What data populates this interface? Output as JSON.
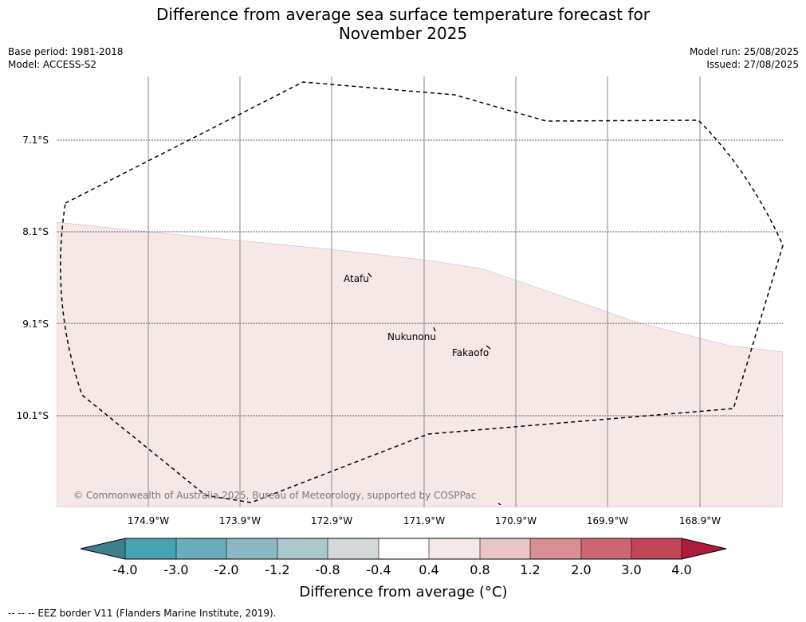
{
  "title_line1": "Difference from average sea surface temperature forecast for",
  "title_line2": "November 2025",
  "base_period": "Base period: 1981-2018",
  "model": "Model: ACCESS-S2",
  "model_run": "Model run: 25/08/2025",
  "issued": "Issued: 27/08/2025",
  "lat_labels": [
    "7.1°S",
    "8.1°S",
    "9.1°S",
    "10.1°S"
  ],
  "lon_labels": [
    "174.9°W",
    "173.9°W",
    "172.9°W",
    "171.9°W",
    "170.9°W",
    "169.9°W",
    "168.9°W"
  ],
  "places": [
    "Atafu",
    "Nukunonu",
    "Fakaofo"
  ],
  "copyright": "© Commonwealth of Australia 2025, Bureau of Meteorology, supported by COSPPac",
  "colorbar": {
    "ticks": [
      "-4.0",
      "-3.0",
      "-2.0",
      "-1.2",
      "-0.8",
      "-0.4",
      "0.4",
      "0.8",
      "1.2",
      "2.0",
      "3.0",
      "4.0"
    ],
    "colors": [
      "#3d7f8d",
      "#45a3b3",
      "#6aaebd",
      "#8bb9c3",
      "#a9c8cc",
      "#d2d9d8",
      "#ffffff",
      "#f6e8e7",
      "#e9c6c3",
      "#d78e95",
      "#cc6673",
      "#c04556",
      "#ad1c3b"
    ],
    "label": "Difference from average (°C)"
  },
  "map_fill_color": "#f5e8e7",
  "footnote": "--  --  -- EEZ border V11 (Flanders Marine Institute, 2019)."
}
